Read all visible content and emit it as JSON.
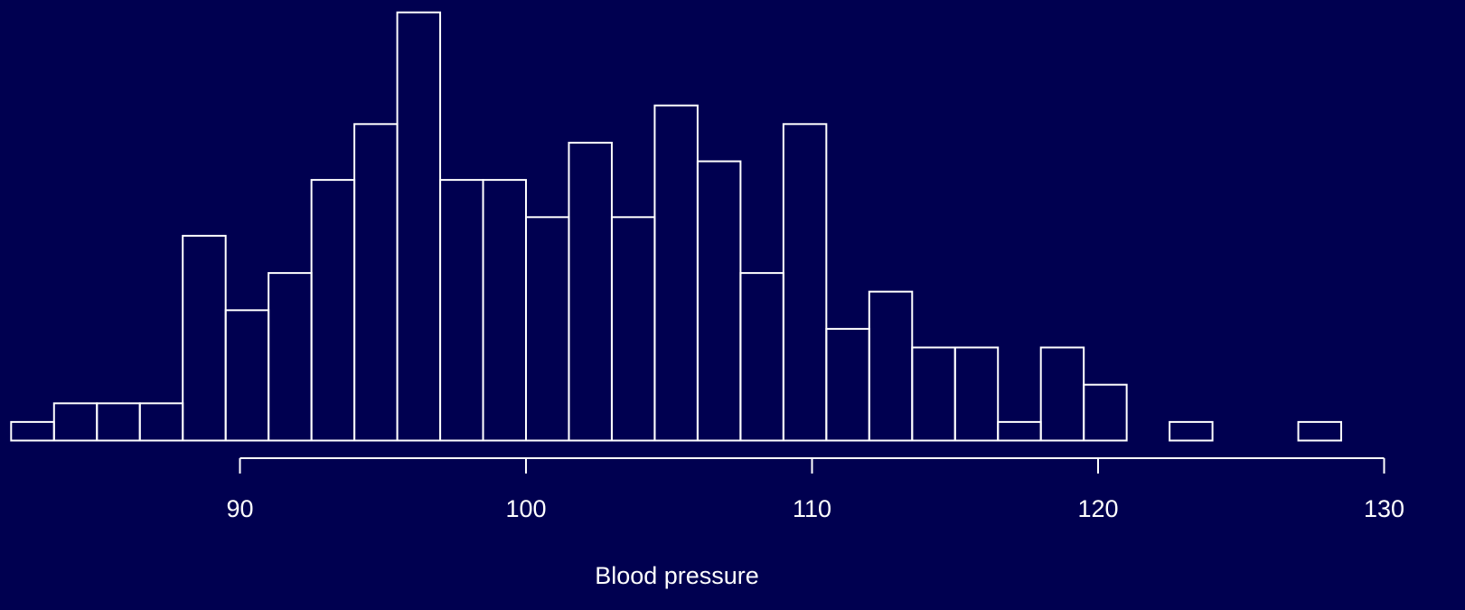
{
  "chart_data": {
    "type": "bar",
    "subtype": "histogram",
    "title": "",
    "xlabel": "Blood pressure",
    "ylabel": "",
    "bin_width": 1.5,
    "bin_edges": [
      82.0,
      83.5,
      85.0,
      86.5,
      88.0,
      89.5,
      91.0,
      92.5,
      94.0,
      95.5,
      97.0,
      98.5,
      100.0,
      101.5,
      103.0,
      104.5,
      106.0,
      107.5,
      109.0,
      110.5,
      112.0,
      113.5,
      115.0,
      116.5,
      118.0,
      119.5,
      121.0,
      122.5,
      124.0,
      125.5,
      127.0,
      128.5
    ],
    "values": [
      1,
      2,
      2,
      2,
      11,
      7,
      9,
      14,
      17,
      23,
      14,
      14,
      12,
      16,
      12,
      18,
      15,
      9,
      17,
      6,
      8,
      5,
      5,
      1,
      5,
      3,
      0,
      1,
      0,
      0,
      1
    ],
    "xlim": [
      82,
      130
    ],
    "x_ticks": [
      90,
      100,
      110,
      120,
      130
    ],
    "y_axis_shown": false,
    "grid": false,
    "colors": {
      "background": "#000050",
      "foreground": "#ffffff"
    }
  }
}
